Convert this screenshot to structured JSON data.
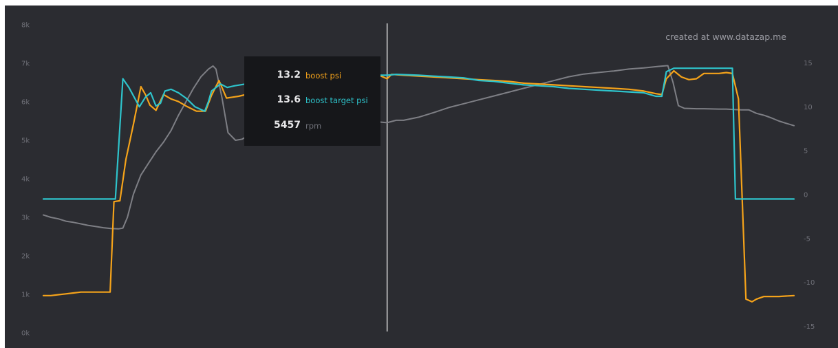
{
  "watermark": "created at www.datazap.me",
  "colors": {
    "background": "#2b2c31",
    "boost": "#f5a31a",
    "target": "#2ec4cc",
    "rpm": "#7e7f85",
    "cursor": "#d8d8d8",
    "tooltip_bg": "#16171a"
  },
  "tooltip": {
    "rows": [
      {
        "value": "13.2",
        "name": "boost psi",
        "color": "#f5a31a"
      },
      {
        "value": "13.6",
        "name": "boost target psi",
        "color": "#2ec4cc"
      },
      {
        "value": "5457",
        "name": "rpm",
        "color": "#6f7078"
      }
    ]
  },
  "chart_data": {
    "type": "line",
    "title": "",
    "xlabel": "",
    "grid": false,
    "legend": "none",
    "x": [
      0,
      100
    ],
    "left_axis": {
      "ticks": [
        "0k",
        "1k",
        "2k",
        "3k",
        "4k",
        "5k",
        "6k",
        "7k",
        "8k"
      ],
      "range": [
        0,
        8000
      ]
    },
    "right_axis": {
      "ticks": [
        "-15",
        "-10",
        "-5",
        "0",
        "5",
        "10",
        "15"
      ],
      "range": [
        -15,
        15
      ]
    },
    "cursor_x": 45.8,
    "series": [
      {
        "name": "boost psi",
        "axis": "right",
        "color": "#f5a31a",
        "points": [
          [
            0,
            -11.5
          ],
          [
            1,
            -11.5
          ],
          [
            2,
            -11.4
          ],
          [
            3,
            -11.3
          ],
          [
            4,
            -11.2
          ],
          [
            5,
            -11.1
          ],
          [
            6,
            -11.1
          ],
          [
            7,
            -11.1
          ],
          [
            8,
            -11.1
          ],
          [
            8.9,
            -11.1
          ],
          [
            9.4,
            -0.8
          ],
          [
            10.2,
            -0.7
          ],
          [
            11,
            4
          ],
          [
            12,
            8
          ],
          [
            13,
            12.3
          ],
          [
            13.6,
            11.4
          ],
          [
            14.2,
            10.2
          ],
          [
            15,
            9.6
          ],
          [
            16,
            11.4
          ],
          [
            17,
            10.9
          ],
          [
            18,
            10.6
          ],
          [
            19,
            10.1
          ],
          [
            20.4,
            9.5
          ],
          [
            21.6,
            9.5
          ],
          [
            22.4,
            11.3
          ],
          [
            23.4,
            13
          ],
          [
            24.4,
            11
          ],
          [
            25.2,
            11.1
          ],
          [
            26,
            11.2
          ],
          [
            27,
            11.4
          ],
          [
            28,
            11.6
          ],
          [
            29,
            11.7
          ],
          [
            30,
            11.8
          ],
          [
            31,
            12
          ],
          [
            32,
            12.2
          ],
          [
            33,
            12.4
          ],
          [
            34,
            12.6
          ],
          [
            35,
            12.8
          ],
          [
            36,
            13
          ],
          [
            37,
            13.2
          ],
          [
            38,
            13.3
          ],
          [
            39,
            13.4
          ],
          [
            40,
            13.5
          ],
          [
            41,
            13.6
          ],
          [
            42,
            13.7
          ],
          [
            43,
            13.7
          ],
          [
            44,
            13.7
          ],
          [
            45,
            13.5
          ],
          [
            45.8,
            13.2
          ],
          [
            46.4,
            13.7
          ],
          [
            48,
            13.6
          ],
          [
            50,
            13.5
          ],
          [
            52,
            13.4
          ],
          [
            54,
            13.3
          ],
          [
            56,
            13.2
          ],
          [
            58,
            13.1
          ],
          [
            60,
            13
          ],
          [
            62,
            12.9
          ],
          [
            64,
            12.7
          ],
          [
            66,
            12.6
          ],
          [
            68,
            12.5
          ],
          [
            70,
            12.4
          ],
          [
            72,
            12.3
          ],
          [
            74,
            12.2
          ],
          [
            76,
            12.1
          ],
          [
            78,
            12
          ],
          [
            80,
            11.8
          ],
          [
            81.6,
            11.5
          ],
          [
            82.4,
            11.4
          ],
          [
            83,
            13.2
          ],
          [
            84,
            14.1
          ],
          [
            85,
            13.4
          ],
          [
            86,
            13.1
          ],
          [
            87,
            13.2
          ],
          [
            88,
            13.8
          ],
          [
            89,
            13.8
          ],
          [
            90,
            13.8
          ],
          [
            91,
            13.9
          ],
          [
            91.8,
            13.8
          ],
          [
            92.6,
            10.9
          ],
          [
            93.6,
            -11.9
          ],
          [
            94.4,
            -12.2
          ],
          [
            95,
            -11.9
          ],
          [
            96,
            -11.6
          ],
          [
            97,
            -11.6
          ],
          [
            98,
            -11.6
          ],
          [
            100,
            -11.5
          ]
        ]
      },
      {
        "name": "boost target psi",
        "axis": "right",
        "color": "#2ec4cc",
        "points": [
          [
            0,
            -0.5
          ],
          [
            9.6,
            -0.5
          ],
          [
            10.6,
            13.2
          ],
          [
            11.4,
            12.2
          ],
          [
            12.8,
            10
          ],
          [
            13.6,
            11.1
          ],
          [
            14.3,
            11.6
          ],
          [
            15,
            10.1
          ],
          [
            15.6,
            10.4
          ],
          [
            16.2,
            11.8
          ],
          [
            17,
            12
          ],
          [
            18,
            11.6
          ],
          [
            19,
            11
          ],
          [
            20.2,
            10
          ],
          [
            21.5,
            9.5
          ],
          [
            22,
            10.6
          ],
          [
            22.4,
            11.8
          ],
          [
            23.6,
            12.6
          ],
          [
            24.5,
            12.2
          ],
          [
            25.5,
            12.4
          ],
          [
            27,
            12.6
          ],
          [
            28,
            12.8
          ],
          [
            29,
            13.1
          ],
          [
            30,
            13.2
          ],
          [
            31,
            13.3
          ],
          [
            32,
            13.3
          ],
          [
            34,
            13.4
          ],
          [
            36,
            13.5
          ],
          [
            38,
            13.6
          ],
          [
            40,
            13.6
          ],
          [
            42,
            13.6
          ],
          [
            44,
            13.6
          ],
          [
            45,
            13.6
          ],
          [
            45.8,
            13.6
          ],
          [
            47,
            13.7
          ],
          [
            50,
            13.6
          ],
          [
            52,
            13.5
          ],
          [
            54,
            13.4
          ],
          [
            56,
            13.3
          ],
          [
            58,
            13
          ],
          [
            60,
            12.9
          ],
          [
            62,
            12.7
          ],
          [
            64,
            12.5
          ],
          [
            66,
            12.4
          ],
          [
            68,
            12.3
          ],
          [
            70,
            12.1
          ],
          [
            72,
            12
          ],
          [
            74,
            11.9
          ],
          [
            76,
            11.8
          ],
          [
            78,
            11.7
          ],
          [
            80,
            11.6
          ],
          [
            81.6,
            11.2
          ],
          [
            82.4,
            11.2
          ],
          [
            83,
            14
          ],
          [
            84,
            14.4
          ],
          [
            86,
            14.4
          ],
          [
            88,
            14.4
          ],
          [
            91.8,
            14.4
          ],
          [
            92.2,
            -0.5
          ],
          [
            100,
            -0.5
          ]
        ]
      },
      {
        "name": "rpm",
        "axis": "left",
        "color": "#7e7f85",
        "points": [
          [
            0,
            3060
          ],
          [
            1,
            3000
          ],
          [
            2,
            2960
          ],
          [
            3,
            2900
          ],
          [
            4,
            2870
          ],
          [
            5,
            2830
          ],
          [
            6,
            2790
          ],
          [
            7,
            2760
          ],
          [
            8,
            2730
          ],
          [
            9,
            2710
          ],
          [
            10,
            2700
          ],
          [
            10.6,
            2720
          ],
          [
            11.2,
            3000
          ],
          [
            12,
            3600
          ],
          [
            13,
            4100
          ],
          [
            14,
            4400
          ],
          [
            15,
            4700
          ],
          [
            16,
            4950
          ],
          [
            17,
            5250
          ],
          [
            18,
            5650
          ],
          [
            19,
            6000
          ],
          [
            20,
            6350
          ],
          [
            21,
            6650
          ],
          [
            22,
            6850
          ],
          [
            22.6,
            6930
          ],
          [
            23,
            6850
          ],
          [
            23.8,
            6100
          ],
          [
            24.6,
            5200
          ],
          [
            25.6,
            5000
          ],
          [
            26.5,
            5030
          ],
          [
            28,
            5200
          ],
          [
            30,
            5380
          ],
          [
            32,
            5520
          ],
          [
            34,
            5580
          ],
          [
            36,
            5590
          ],
          [
            38,
            5560
          ],
          [
            40,
            5540
          ],
          [
            42,
            5520
          ],
          [
            44,
            5490
          ],
          [
            45.8,
            5457
          ],
          [
            47,
            5520
          ],
          [
            48,
            5520
          ],
          [
            50,
            5600
          ],
          [
            52,
            5720
          ],
          [
            54,
            5850
          ],
          [
            56,
            5950
          ],
          [
            58,
            6050
          ],
          [
            60,
            6150
          ],
          [
            62,
            6250
          ],
          [
            64,
            6350
          ],
          [
            66,
            6450
          ],
          [
            68,
            6550
          ],
          [
            70,
            6650
          ],
          [
            72,
            6720
          ],
          [
            74,
            6760
          ],
          [
            76,
            6800
          ],
          [
            78,
            6850
          ],
          [
            80,
            6880
          ],
          [
            82,
            6920
          ],
          [
            83.2,
            6940
          ],
          [
            83.9,
            6500
          ],
          [
            84.6,
            5900
          ],
          [
            85.4,
            5830
          ],
          [
            87,
            5820
          ],
          [
            88,
            5820
          ],
          [
            90,
            5810
          ],
          [
            91,
            5810
          ],
          [
            92,
            5800
          ],
          [
            93,
            5790
          ],
          [
            94,
            5790
          ],
          [
            95,
            5700
          ],
          [
            96,
            5650
          ],
          [
            97,
            5580
          ],
          [
            98,
            5500
          ],
          [
            99,
            5440
          ],
          [
            100,
            5380
          ]
        ]
      }
    ]
  }
}
